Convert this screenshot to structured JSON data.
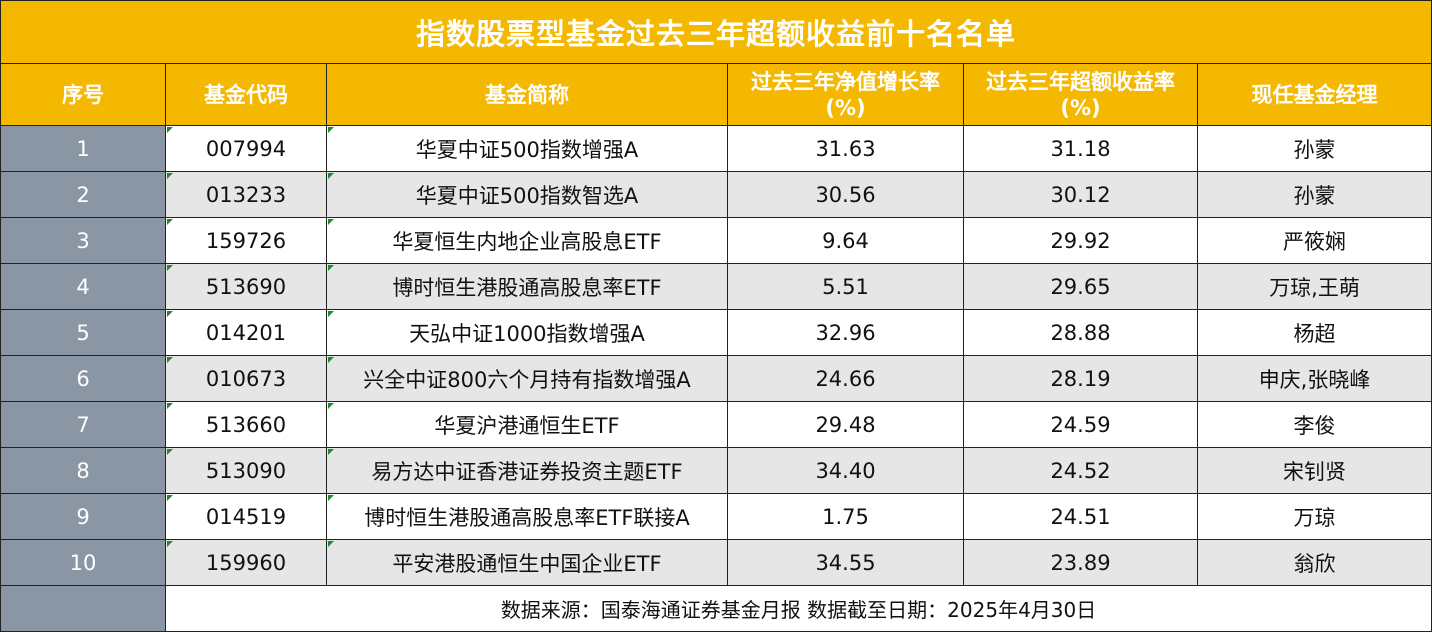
{
  "title": "指数股票型基金过去三年超额收益前十名名单",
  "headers": {
    "index": "序号",
    "code": "基金代码",
    "name": "基金简称",
    "nav_growth_line1": "过去三年净值增长率",
    "nav_growth_line2": "(%)",
    "excess_return_line1": "过去三年超额收益率",
    "excess_return_line2": "(%)",
    "manager": "现任基金经理"
  },
  "rows": [
    {
      "index": "1",
      "code": "007994",
      "name": "华夏中证500指数增强A",
      "nav_growth": "31.63",
      "excess_return": "31.18",
      "manager": "孙蒙"
    },
    {
      "index": "2",
      "code": "013233",
      "name": "华夏中证500指数智选A",
      "nav_growth": "30.56",
      "excess_return": "30.12",
      "manager": "孙蒙"
    },
    {
      "index": "3",
      "code": "159726",
      "name": "华夏恒生内地企业高股息ETF",
      "nav_growth": "9.64",
      "excess_return": "29.92",
      "manager": "严筱娴"
    },
    {
      "index": "4",
      "code": "513690",
      "name": "博时恒生港股通高股息率ETF",
      "nav_growth": "5.51",
      "excess_return": "29.65",
      "manager": "万琼,王萌"
    },
    {
      "index": "5",
      "code": "014201",
      "name": "天弘中证1000指数增强A",
      "nav_growth": "32.96",
      "excess_return": "28.88",
      "manager": "杨超"
    },
    {
      "index": "6",
      "code": "010673",
      "name": "兴全中证800六个月持有指数增强A",
      "nav_growth": "24.66",
      "excess_return": "28.19",
      "manager": "申庆,张晓峰"
    },
    {
      "index": "7",
      "code": "513660",
      "name": "华夏沪港通恒生ETF",
      "nav_growth": "29.48",
      "excess_return": "24.59",
      "manager": "李俊"
    },
    {
      "index": "8",
      "code": "513090",
      "name": "易方达中证香港证券投资主题ETF",
      "nav_growth": "34.40",
      "excess_return": "24.52",
      "manager": "宋钊贤"
    },
    {
      "index": "9",
      "code": "014519",
      "name": "博时恒生港股通高股息率ETF联接A",
      "nav_growth": "1.75",
      "excess_return": "24.51",
      "manager": "万琼"
    },
    {
      "index": "10",
      "code": "159960",
      "name": "平安港股通恒生中国企业ETF",
      "nav_growth": "34.55",
      "excess_return": "23.89",
      "manager": "翁欣"
    }
  ],
  "footer": "数据来源：国泰海通证券基金月报  数据截至日期：2025年4月30日",
  "colors": {
    "header_bg": "#f5b800",
    "index_bg": "#8a96a3",
    "alt_row_bg": "#e6e6e6",
    "marker": "#1e8a2e"
  }
}
